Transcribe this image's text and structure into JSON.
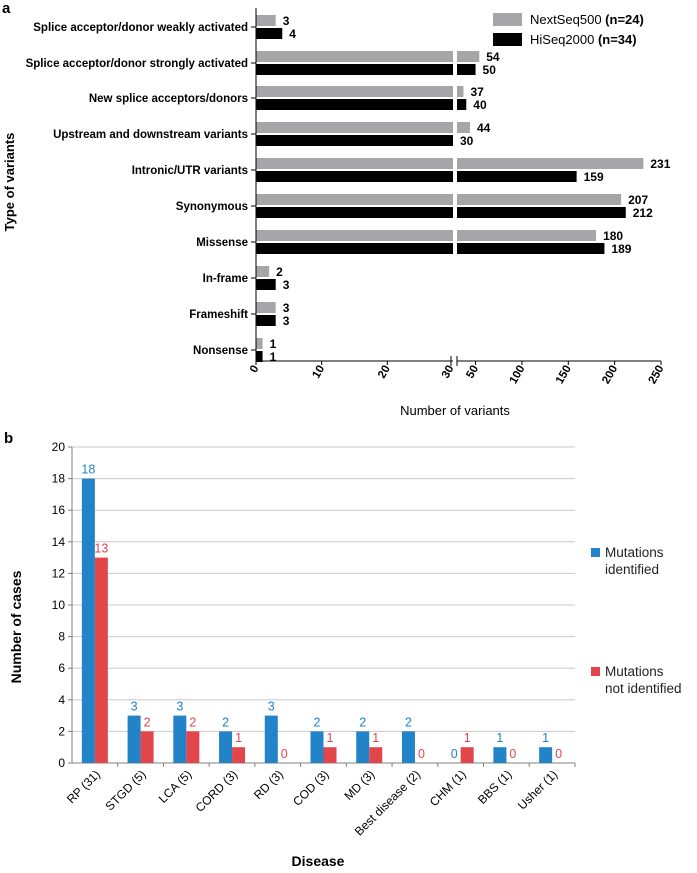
{
  "panel_a_label": "a",
  "panel_b_label": "b",
  "chart_data": [
    {
      "type": "bar",
      "orientation": "horizontal",
      "title": "",
      "ylabel": "Type of variants",
      "xlabel": "Number of variants",
      "categories": [
        "Splice acceptor/donor weakly activated",
        "Splice acceptor/donor strongly activated",
        "New splice acceptors/donors",
        "Upstream and downstream variants",
        "Intronic/UTR variants",
        "Synonymous",
        "Missense",
        "In-frame",
        "Frameshift",
        "Nonsense"
      ],
      "series": [
        {
          "name": "NextSeq500",
          "count_label": "(n=24)",
          "color": "#a6a6a8",
          "values": [
            3,
            54,
            37,
            44,
            231,
            207,
            180,
            2,
            3,
            1
          ]
        },
        {
          "name": "HiSeq2000",
          "count_label": "(n=34)",
          "color": "#000000",
          "values": [
            4,
            50,
            40,
            30,
            159,
            212,
            189,
            3,
            3,
            1
          ]
        }
      ],
      "axis_break": true,
      "xticks_left": [
        0,
        10,
        20,
        30
      ],
      "xticks_right": [
        30,
        50,
        100,
        150,
        200,
        250
      ],
      "xlim": [
        0,
        250
      ],
      "legend": "top-right"
    },
    {
      "type": "bar",
      "orientation": "vertical",
      "title": "",
      "xlabel": "Disease",
      "ylabel": "Number of cases",
      "categories": [
        "RP (31)",
        "STGD (5)",
        "LCA (5)",
        "CORD (3)",
        "RD (3)",
        "COD (3)",
        "MD (3)",
        "Best disease (2)",
        "CHM (1)",
        "BBS (1)",
        "Usher (1)"
      ],
      "series": [
        {
          "name": "Mutations identified",
          "color": "#2283c9",
          "values": [
            18,
            3,
            3,
            2,
            3,
            2,
            2,
            2,
            0,
            1,
            1
          ]
        },
        {
          "name": "Mutations not identified",
          "color": "#e2464b",
          "values": [
            13,
            2,
            2,
            1,
            0,
            1,
            1,
            0,
            1,
            0,
            0
          ]
        }
      ],
      "ylim": [
        0,
        20
      ],
      "yticks": [
        0,
        2,
        4,
        6,
        8,
        10,
        12,
        14,
        16,
        18,
        20
      ],
      "grid": true,
      "legend": "right"
    }
  ]
}
